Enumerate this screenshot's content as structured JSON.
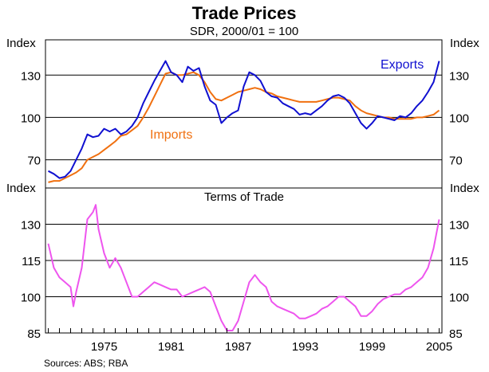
{
  "title": "Trade Prices",
  "subtitle": "SDR, 2000/01 = 100",
  "source": "Sources: ABS; RBA",
  "colors": {
    "exports": "#1010d0",
    "imports": "#f07010",
    "tot": "#ee55ee",
    "grid": "#000000"
  },
  "chart_data": [
    {
      "type": "line",
      "panel": "top",
      "title": "",
      "ylabel": "Index",
      "ylim": [
        50,
        155
      ],
      "yticks": [
        70,
        100,
        130
      ],
      "xlim": [
        1969.75,
        2005.25
      ],
      "series": [
        {
          "name": "Exports",
          "x": [
            1970.0,
            1970.5,
            1971.0,
            1971.5,
            1972.0,
            1972.5,
            1973.0,
            1973.5,
            1974.0,
            1974.5,
            1975.0,
            1975.5,
            1976.0,
            1976.5,
            1977.0,
            1977.5,
            1978.0,
            1978.5,
            1979.0,
            1979.5,
            1980.0,
            1980.5,
            1981.0,
            1981.5,
            1982.0,
            1982.5,
            1983.0,
            1983.5,
            1984.0,
            1984.5,
            1985.0,
            1985.5,
            1986.0,
            1986.5,
            1987.0,
            1987.5,
            1988.0,
            1988.5,
            1989.0,
            1989.5,
            1990.0,
            1990.5,
            1991.0,
            1991.5,
            1992.0,
            1992.5,
            1993.0,
            1993.5,
            1994.0,
            1994.5,
            1995.0,
            1995.5,
            1996.0,
            1996.5,
            1997.0,
            1997.5,
            1998.0,
            1998.5,
            1999.0,
            1999.5,
            2000.0,
            2000.5,
            2001.0,
            2001.5,
            2002.0,
            2002.5,
            2003.0,
            2003.5,
            2004.0,
            2004.5,
            2005.0
          ],
          "values": [
            62,
            60,
            57,
            58,
            62,
            70,
            78,
            88,
            86,
            87,
            92,
            90,
            92,
            88,
            90,
            94,
            100,
            110,
            118,
            126,
            133,
            140,
            132,
            130,
            125,
            136,
            133,
            135,
            122,
            112,
            109,
            96,
            100,
            103,
            105,
            122,
            132,
            130,
            126,
            118,
            115,
            114,
            110,
            108,
            106,
            102,
            103,
            102,
            105,
            108,
            112,
            115,
            116,
            114,
            110,
            103,
            96,
            92,
            96,
            101,
            100,
            99,
            98,
            101,
            100,
            103,
            108,
            112,
            118,
            125,
            140
          ]
        },
        {
          "name": "Imports",
          "x": [
            1970.0,
            1970.5,
            1971.0,
            1971.5,
            1972.0,
            1972.5,
            1973.0,
            1973.5,
            1974.0,
            1974.5,
            1975.0,
            1975.5,
            1976.0,
            1976.5,
            1977.0,
            1977.5,
            1978.0,
            1978.5,
            1979.0,
            1979.5,
            1980.0,
            1980.5,
            1981.0,
            1981.5,
            1982.0,
            1982.5,
            1983.0,
            1983.5,
            1984.0,
            1984.5,
            1985.0,
            1985.5,
            1986.0,
            1986.5,
            1987.0,
            1987.5,
            1988.0,
            1988.5,
            1989.0,
            1989.5,
            1990.0,
            1990.5,
            1991.0,
            1991.5,
            1992.0,
            1992.5,
            1993.0,
            1993.5,
            1994.0,
            1994.5,
            1995.0,
            1995.5,
            1996.0,
            1996.5,
            1997.0,
            1997.5,
            1998.0,
            1998.5,
            1999.0,
            1999.5,
            2000.0,
            2000.5,
            2001.0,
            2001.5,
            2002.0,
            2002.5,
            2003.0,
            2003.5,
            2004.0,
            2004.5,
            2005.0
          ],
          "values": [
            54,
            55,
            55,
            57,
            59,
            61,
            64,
            70,
            72,
            74,
            77,
            80,
            83,
            87,
            88,
            91,
            94,
            100,
            107,
            115,
            123,
            131,
            132,
            130,
            130,
            131,
            132,
            130,
            125,
            118,
            113,
            112,
            114,
            116,
            118,
            119,
            120,
            121,
            120,
            118,
            117,
            115,
            114,
            113,
            112,
            111,
            111,
            111,
            111,
            112,
            113,
            114,
            114,
            113,
            112,
            108,
            105,
            103,
            102,
            101,
            100,
            100,
            99,
            99,
            99,
            99,
            100,
            100,
            101,
            102,
            105
          ]
        }
      ],
      "annotations": [
        {
          "text": "Exports",
          "series": "Exports"
        },
        {
          "text": "Imports",
          "series": "Imports"
        }
      ]
    },
    {
      "type": "line",
      "panel": "bottom",
      "title": "Terms of Trade",
      "ylabel": "Index",
      "ylim": [
        85,
        145
      ],
      "yticks": [
        85,
        100,
        115,
        130
      ],
      "xlim": [
        1969.75,
        2005.25
      ],
      "xticks": [
        1975,
        1981,
        1987,
        1993,
        1999,
        2005
      ],
      "series": [
        {
          "name": "Terms of Trade",
          "x": [
            1970.0,
            1970.5,
            1971.0,
            1971.5,
            1972.0,
            1972.25,
            1972.5,
            1973.0,
            1973.5,
            1974.0,
            1974.25,
            1974.5,
            1975.0,
            1975.5,
            1976.0,
            1976.5,
            1977.0,
            1977.5,
            1978.0,
            1978.5,
            1979.0,
            1979.5,
            1980.0,
            1980.5,
            1981.0,
            1981.5,
            1982.0,
            1982.5,
            1983.0,
            1983.5,
            1984.0,
            1984.5,
            1985.0,
            1985.5,
            1986.0,
            1986.5,
            1987.0,
            1987.5,
            1988.0,
            1988.5,
            1989.0,
            1989.5,
            1990.0,
            1990.5,
            1991.0,
            1991.5,
            1992.0,
            1992.5,
            1993.0,
            1993.5,
            1994.0,
            1994.5,
            1995.0,
            1995.5,
            1996.0,
            1996.5,
            1997.0,
            1997.5,
            1998.0,
            1998.5,
            1999.0,
            1999.5,
            2000.0,
            2000.5,
            2001.0,
            2001.5,
            2002.0,
            2002.5,
            2003.0,
            2003.5,
            2004.0,
            2004.5,
            2005.0
          ],
          "values": [
            122,
            112,
            108,
            106,
            104,
            96,
            102,
            112,
            132,
            135,
            138,
            128,
            118,
            112,
            116,
            112,
            106,
            100,
            100,
            102,
            104,
            106,
            105,
            104,
            103,
            103,
            100,
            101,
            102,
            103,
            104,
            102,
            96,
            90,
            86,
            86,
            90,
            98,
            106,
            109,
            106,
            104,
            98,
            96,
            95,
            94,
            93,
            91,
            91,
            92,
            93,
            95,
            96,
            98,
            100,
            100,
            98,
            96,
            92,
            92,
            94,
            97,
            99,
            100,
            101,
            101,
            103,
            104,
            106,
            108,
            112,
            120,
            132
          ]
        }
      ]
    }
  ]
}
